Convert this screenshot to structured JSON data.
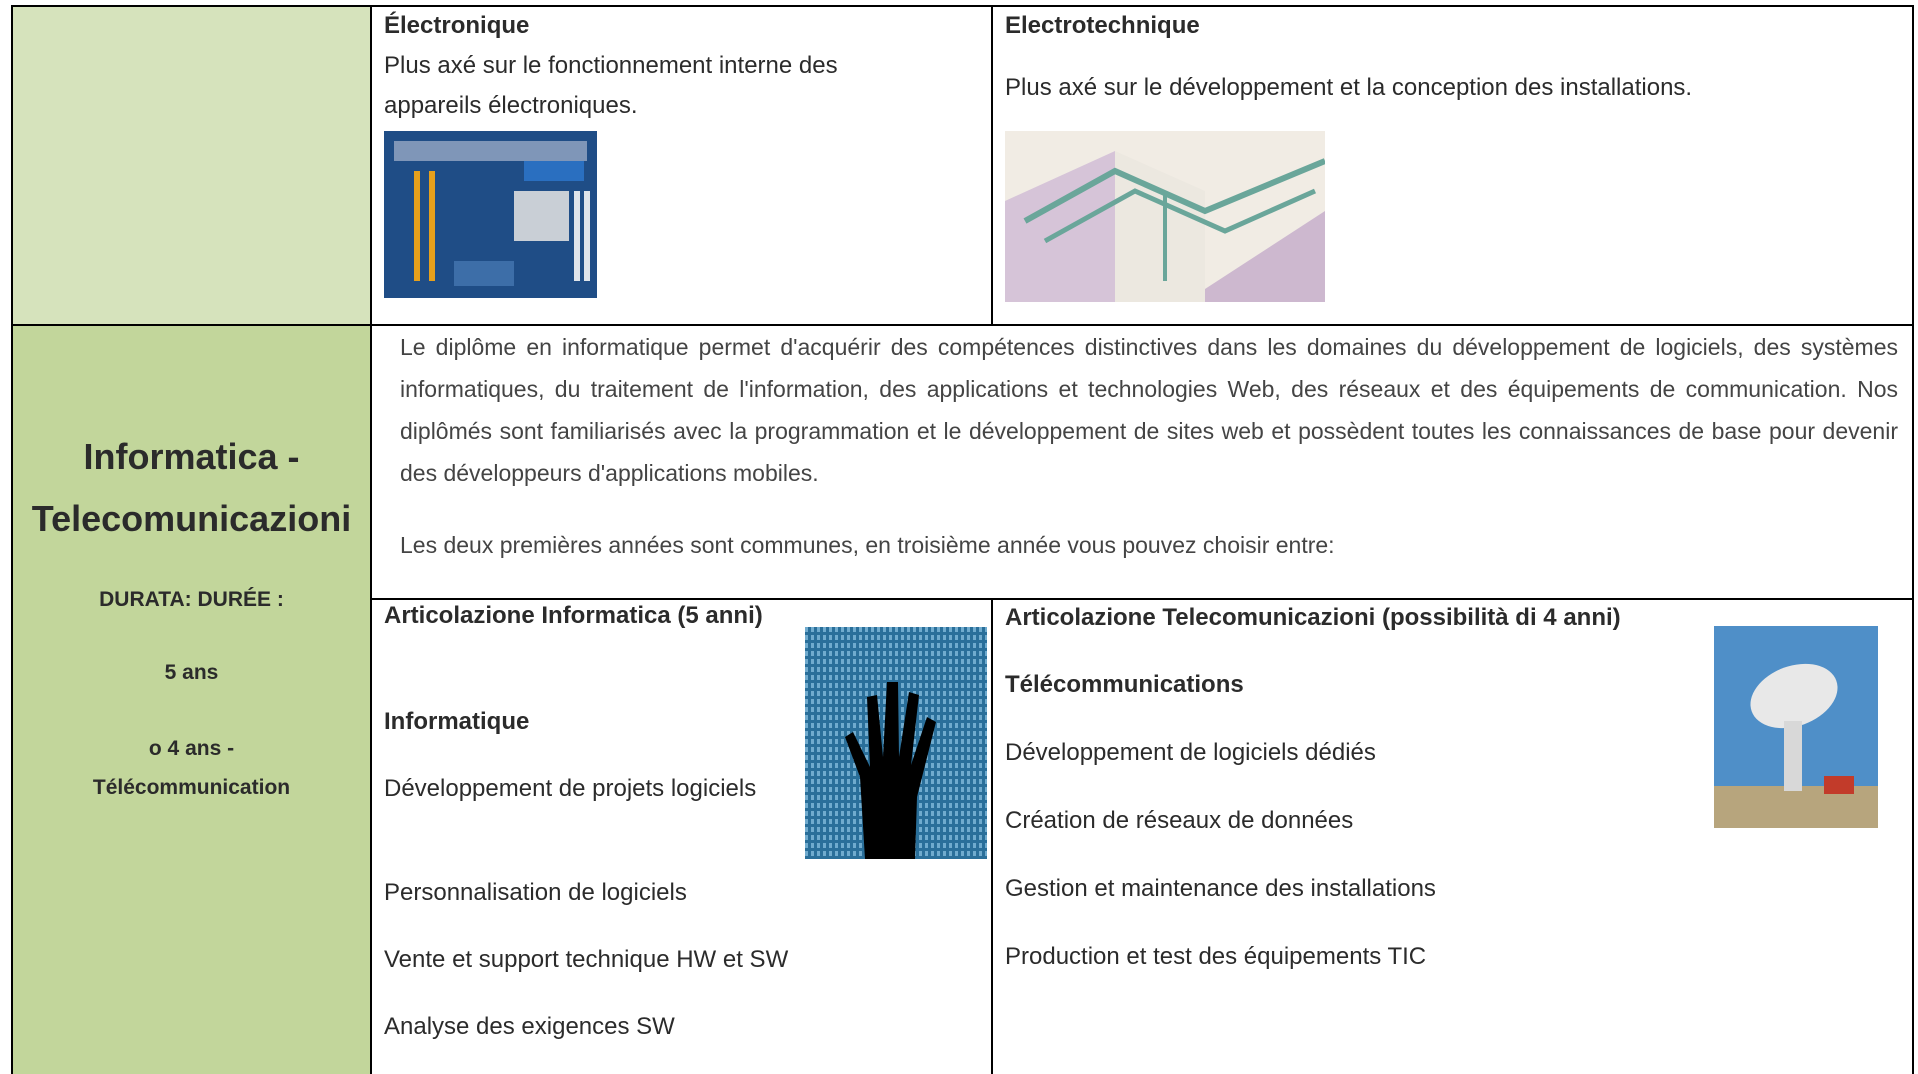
{
  "row1": {
    "electronique": {
      "title": "Électronique",
      "description": "Plus axé sur le fonctionnement interne des appareils électroniques."
    },
    "electrotechnique": {
      "title": "Electrotechnique",
      "description": "Plus axé sur le développement et la conception des installations."
    }
  },
  "row2": {
    "label": {
      "title": "Informatica - Telecomunicazioni",
      "duration": [
        "DURATA: DURÉE :",
        "5 ans",
        "o 4 ans -",
        "Télécommunication"
      ]
    },
    "intro": [
      "Le diplôme en informatique permet d'acquérir des compétences distinctives dans les domaines du développement de logiciels, des systèmes informatiques, du traitement de l'information, des applications et technologies Web, des réseaux et des équipements de communication. Nos diplômés sont familiarisés avec la programmation et le développement de sites web et possèdent toutes les connaissances de base pour devenir des développeurs d'applications mobiles.",
      "Les deux premières années sont communes, en troisième année vous pouvez choisir entre:"
    ],
    "informatica": {
      "heading": "Articolazione Informatica (5 anni)",
      "subtitle": "Informatique",
      "items": [
        "Développement de projets logiciels",
        "Personnalisation de logiciels",
        "Vente et support technique HW et SW",
        "Analyse des exigences SW"
      ]
    },
    "telecom": {
      "heading": "Articolazione Telecomunicazioni (possibilità di 4 anni)",
      "subtitle": "Télécommunications",
      "items": [
        "Développement de logiciels dédiés",
        "Création de réseaux de données",
        "Gestion et maintenance des installations",
        "Production et test des équipements TIC"
      ]
    }
  }
}
